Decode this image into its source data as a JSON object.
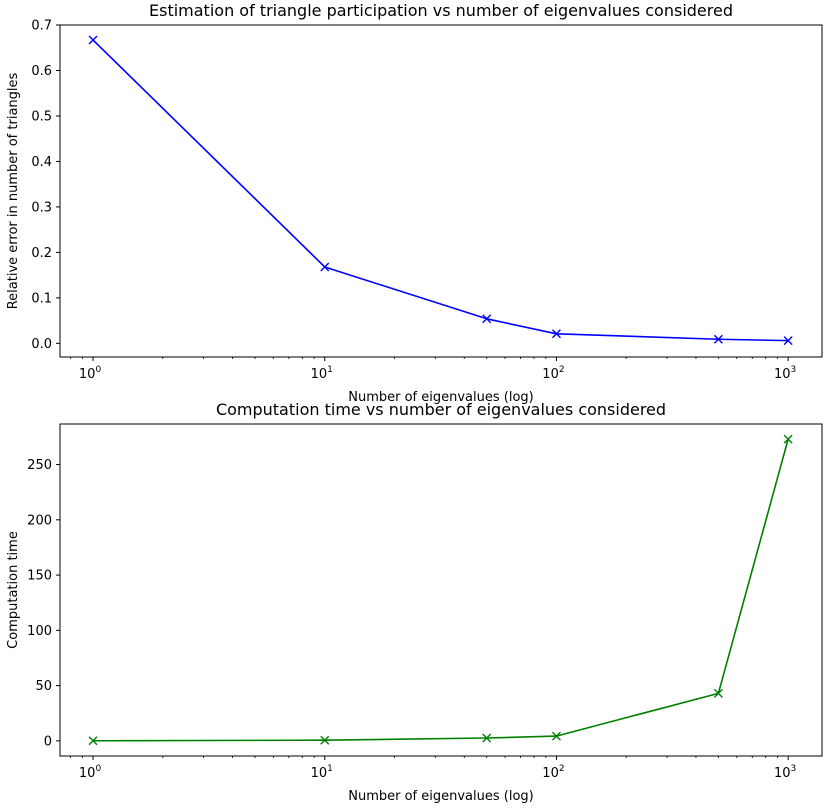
{
  "chart_data": [
    {
      "type": "line",
      "title": "Estimation of triangle participation vs number of eigenvalues considered",
      "xlabel": "Number of eigenvalues (log)",
      "ylabel": "Relative error in number of triangles",
      "xscale": "log",
      "xlim": [
        0.72,
        1400
      ],
      "ylim": [
        -0.03,
        0.7
      ],
      "xticks": [
        1,
        10,
        100,
        1000
      ],
      "xtick_labels": [
        "10^0",
        "10^1",
        "10^2",
        "10^3"
      ],
      "yticks": [
        0.0,
        0.1,
        0.2,
        0.3,
        0.4,
        0.5,
        0.6,
        0.7
      ],
      "ytick_labels": [
        "0.0",
        "0.1",
        "0.2",
        "0.3",
        "0.4",
        "0.5",
        "0.6",
        "0.7"
      ],
      "grid": false,
      "series": [
        {
          "color": "#0000ff",
          "marker": "x",
          "x": [
            1,
            10,
            50,
            100,
            500,
            1000
          ],
          "y": [
            0.667,
            0.168,
            0.054,
            0.021,
            0.009,
            0.006
          ]
        }
      ]
    },
    {
      "type": "line",
      "title": "Computation time vs number of eigenvalues considered",
      "xlabel": "Number of eigenvalues (log)",
      "ylabel": "Computation time",
      "xscale": "log",
      "xlim": [
        0.72,
        1400
      ],
      "ylim": [
        -13.7,
        286.7
      ],
      "xticks": [
        1,
        10,
        100,
        1000
      ],
      "xtick_labels": [
        "10^0",
        "10^1",
        "10^2",
        "10^3"
      ],
      "yticks": [
        0,
        50,
        100,
        150,
        200,
        250
      ],
      "ytick_labels": [
        "0",
        "50",
        "100",
        "150",
        "200",
        "250"
      ],
      "grid": false,
      "series": [
        {
          "color": "#008000",
          "marker": "x",
          "x": [
            1,
            10,
            50,
            100,
            500,
            1000
          ],
          "y": [
            0.1,
            0.6,
            2.6,
            4.3,
            43.0,
            273.0
          ]
        }
      ]
    }
  ]
}
